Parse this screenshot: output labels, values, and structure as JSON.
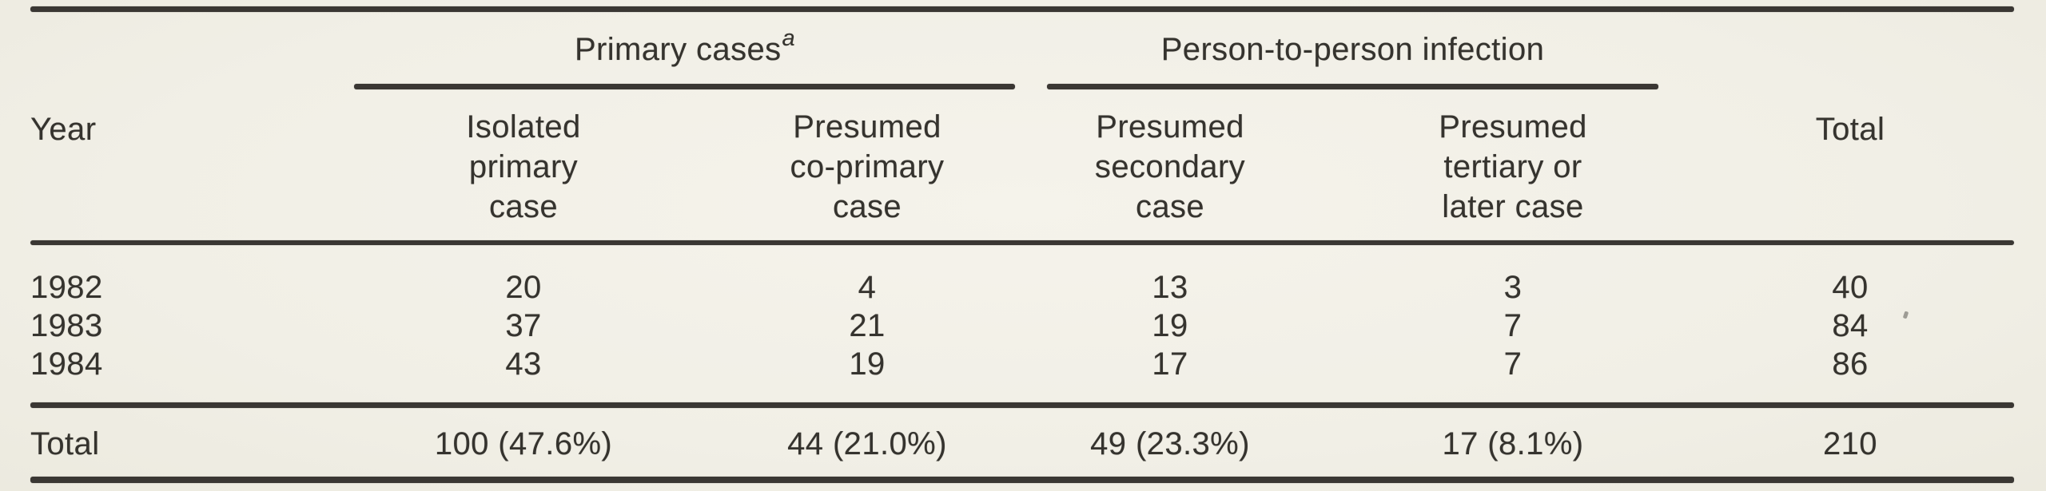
{
  "palette": {
    "paper": "#f1efe6",
    "ink": "#35332e",
    "rule": "#3a3733"
  },
  "header": {
    "year_label": "Year",
    "total_label": "Total",
    "spanners": [
      {
        "label": "Primary cases",
        "sup": "a"
      },
      {
        "label": "Person-to-person infection"
      }
    ],
    "columns": [
      {
        "lines": [
          "Isolated",
          "primary",
          "case"
        ]
      },
      {
        "lines": [
          "Presumed",
          "co-primary",
          "case"
        ]
      },
      {
        "lines": [
          "Presumed",
          "secondary",
          "case"
        ]
      },
      {
        "lines": [
          "Presumed",
          "tertiary or",
          "later case"
        ]
      }
    ]
  },
  "body": {
    "rows": [
      {
        "year": "1982",
        "isolated_primary": "20",
        "co_primary": "4",
        "secondary": "13",
        "tertiary": "3",
        "total": "40"
      },
      {
        "year": "1983",
        "isolated_primary": "37",
        "co_primary": "21",
        "secondary": "19",
        "tertiary": "7",
        "total": "84"
      },
      {
        "year": "1984",
        "isolated_primary": "43",
        "co_primary": "19",
        "secondary": "17",
        "tertiary": "7",
        "total": "86"
      }
    ],
    "totals": {
      "label": "Total",
      "isolated_primary": "100 (47.6%)",
      "co_primary": "44 (21.0%)",
      "secondary": "49 (23.3%)",
      "tertiary": "17 (8.1%)",
      "total": "210"
    }
  }
}
